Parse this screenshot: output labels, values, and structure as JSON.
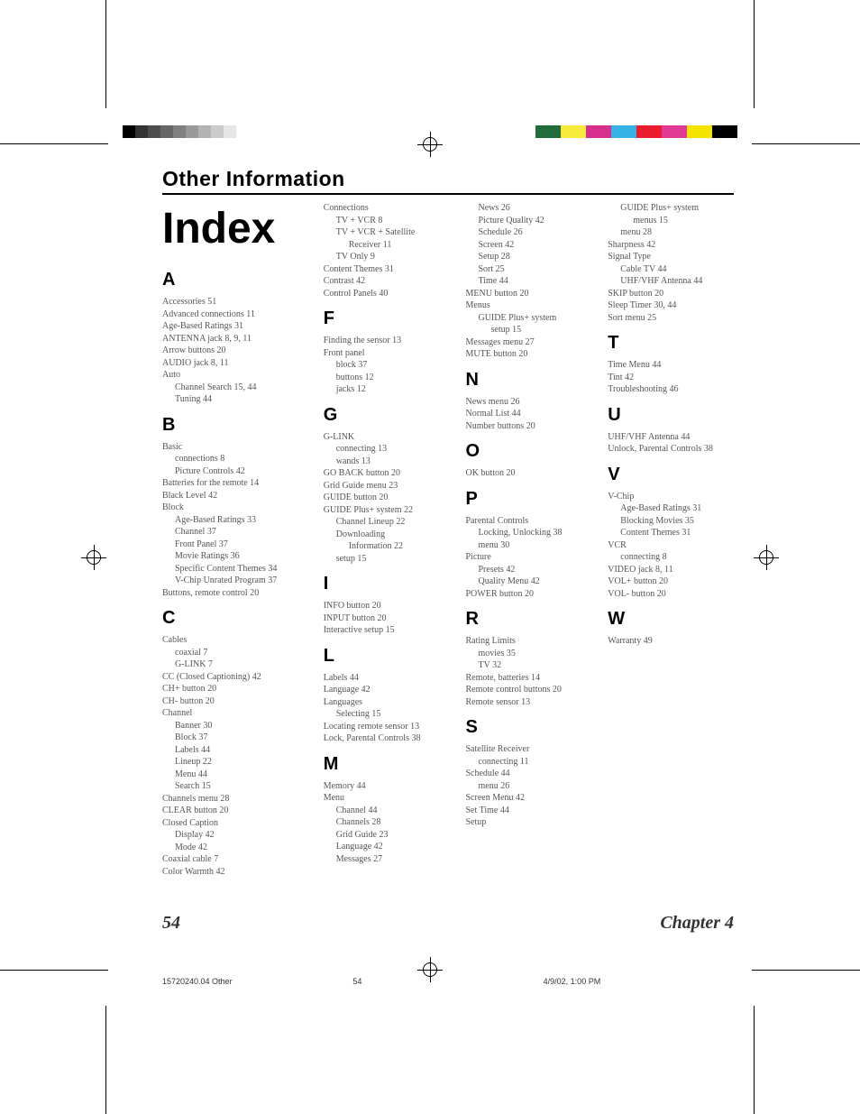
{
  "colorbar_left_grays": [
    "#000000",
    "#333333",
    "#4d4d4d",
    "#666666",
    "#808080",
    "#999999",
    "#b3b3b3",
    "#cccccc",
    "#e6e6e6",
    "#ffffff"
  ],
  "colorbar_right": [
    "#216c3a",
    "#f7ea3a",
    "#d72f8e",
    "#38b3e6",
    "#ea1c2d",
    "#e03a95",
    "#f4e400",
    "#000000"
  ],
  "section_title": "Other Information",
  "index_title": "Index",
  "footer": {
    "page": "54",
    "chapter": "Chapter 4"
  },
  "slug": {
    "file": "15720240.04 Other",
    "pagenum": "54",
    "datetime": "4/9/02, 1:00 PM"
  },
  "letters": {
    "A": [
      {
        "t": "Accessories   51"
      },
      {
        "t": "Advanced connections   11"
      },
      {
        "t": "Age-Based Ratings   31"
      },
      {
        "t": "ANTENNA jack   8,  9,  11"
      },
      {
        "t": "Arrow buttons   20"
      },
      {
        "t": "AUDIO jack   8,  11"
      },
      {
        "t": "Auto"
      },
      {
        "t": "Channel Search   15,  44",
        "c": "sub"
      },
      {
        "t": "Tuning   44",
        "c": "sub"
      }
    ],
    "B": [
      {
        "t": "Basic"
      },
      {
        "t": "connections   8",
        "c": "sub"
      },
      {
        "t": "Picture Controls   42",
        "c": "sub"
      },
      {
        "t": "Batteries for the remote   14"
      },
      {
        "t": "Black Level   42"
      },
      {
        "t": "Block"
      },
      {
        "t": "Age-Based Ratings   33",
        "c": "sub"
      },
      {
        "t": "Channel   37",
        "c": "sub"
      },
      {
        "t": "Front Panel   37",
        "c": "sub"
      },
      {
        "t": "Movie Ratings   36",
        "c": "sub"
      },
      {
        "t": "Specific Content Themes   34",
        "c": "sub"
      },
      {
        "t": "V-Chip Unrated Program   37",
        "c": "sub"
      },
      {
        "t": "Buttons, remote control   20"
      }
    ],
    "C": [
      {
        "t": "Cables"
      },
      {
        "t": "coaxial   7",
        "c": "sub"
      },
      {
        "t": "G-LINK   7",
        "c": "sub"
      },
      {
        "t": "CC (Closed Captioning)   42"
      },
      {
        "t": "CH+ button   20"
      },
      {
        "t": "CH- button   20"
      },
      {
        "t": "Channel"
      },
      {
        "t": "Banner   30",
        "c": "sub"
      },
      {
        "t": "Block   37",
        "c": "sub"
      },
      {
        "t": "Labels   44",
        "c": "sub"
      },
      {
        "t": "Lineup   22",
        "c": "sub"
      },
      {
        "t": "Menu   44",
        "c": "sub"
      },
      {
        "t": "Search   15",
        "c": "sub"
      },
      {
        "t": "Channels menu   28"
      },
      {
        "t": "CLEAR button   20"
      },
      {
        "t": "Closed Caption"
      },
      {
        "t": "Display   42",
        "c": "sub"
      },
      {
        "t": "Mode   42",
        "c": "sub"
      },
      {
        "t": "Coaxial cable   7"
      },
      {
        "t": "Color Warmth   42"
      }
    ],
    "Cx": [
      {
        "t": "Connections"
      },
      {
        "t": "TV + VCR   8",
        "c": "sub"
      },
      {
        "t": "TV + VCR + Satellite",
        "c": "sub"
      },
      {
        "t": "Receiver   11",
        "c": "sub2"
      },
      {
        "t": "TV Only   9",
        "c": "sub"
      },
      {
        "t": "Content Themes   31"
      },
      {
        "t": "Contrast   42"
      },
      {
        "t": "Control Panels   40"
      }
    ],
    "F": [
      {
        "t": "Finding the sensor   13"
      },
      {
        "t": "Front panel"
      },
      {
        "t": "block   37",
        "c": "sub"
      },
      {
        "t": "buttons   12",
        "c": "sub"
      },
      {
        "t": "jacks   12",
        "c": "sub"
      }
    ],
    "G": [
      {
        "t": "G-LINK"
      },
      {
        "t": "connecting   13",
        "c": "sub"
      },
      {
        "t": "wands   13",
        "c": "sub"
      },
      {
        "t": "GO BACK button   20"
      },
      {
        "t": "Grid Guide menu   23"
      },
      {
        "t": "GUIDE button   20"
      },
      {
        "t": "GUIDE Plus+ system   22"
      },
      {
        "t": "Channel Lineup   22",
        "c": "sub"
      },
      {
        "t": "Downloading",
        "c": "sub"
      },
      {
        "t": "Information   22",
        "c": "sub2"
      },
      {
        "t": "setup   15",
        "c": "sub"
      }
    ],
    "I": [
      {
        "t": "INFO button   20"
      },
      {
        "t": "INPUT button   20"
      },
      {
        "t": "Interactive setup   15"
      }
    ],
    "L": [
      {
        "t": "Labels   44"
      },
      {
        "t": "Language   42"
      },
      {
        "t": "Languages"
      },
      {
        "t": "Selecting   15",
        "c": "sub"
      },
      {
        "t": "Locating remote sensor   13"
      },
      {
        "t": "Lock, Parental Controls   38"
      }
    ],
    "M": [
      {
        "t": "Memory   44"
      },
      {
        "t": "Menu"
      },
      {
        "t": "Channel   44",
        "c": "sub"
      },
      {
        "t": "Channels   28",
        "c": "sub"
      },
      {
        "t": "Grid Guide   23",
        "c": "sub"
      },
      {
        "t": "Language   42",
        "c": "sub"
      },
      {
        "t": "Messages   27",
        "c": "sub"
      }
    ],
    "Mx": [
      {
        "t": "News   26",
        "c": "sub"
      },
      {
        "t": "Picture Quality   42",
        "c": "sub"
      },
      {
        "t": "Schedule   26",
        "c": "sub"
      },
      {
        "t": "Screen   42",
        "c": "sub"
      },
      {
        "t": "Setup   28",
        "c": "sub"
      },
      {
        "t": "Sort   25",
        "c": "sub"
      },
      {
        "t": "Time   44",
        "c": "sub"
      },
      {
        "t": "MENU button   20"
      },
      {
        "t": "Menus"
      },
      {
        "t": "GUIDE Plus+ system",
        "c": "sub"
      },
      {
        "t": "setup   15",
        "c": "sub2"
      },
      {
        "t": "Messages menu   27"
      },
      {
        "t": "MUTE button   20"
      }
    ],
    "N": [
      {
        "t": "News menu   26"
      },
      {
        "t": "Normal List   44"
      },
      {
        "t": "Number buttons   20"
      }
    ],
    "O": [
      {
        "t": "OK button   20"
      }
    ],
    "P": [
      {
        "t": "Parental Controls"
      },
      {
        "t": "Locking, Unlocking   38",
        "c": "sub"
      },
      {
        "t": "menu   30",
        "c": "sub"
      },
      {
        "t": "Picture"
      },
      {
        "t": "Presets   42",
        "c": "sub"
      },
      {
        "t": "Quality Menu   42",
        "c": "sub"
      },
      {
        "t": "POWER button   20"
      }
    ],
    "R": [
      {
        "t": "Rating Limits"
      },
      {
        "t": "movies   35",
        "c": "sub"
      },
      {
        "t": "TV   32",
        "c": "sub"
      },
      {
        "t": "Remote, batteries   14"
      },
      {
        "t": "Remote control buttons   20"
      },
      {
        "t": "Remote sensor   13"
      }
    ],
    "S": [
      {
        "t": "Satellite Receiver"
      },
      {
        "t": "connecting   11",
        "c": "sub"
      },
      {
        "t": "Schedule   44"
      },
      {
        "t": "menu   26",
        "c": "sub"
      },
      {
        "t": "Screen Menu   42"
      },
      {
        "t": "Set Time   44"
      },
      {
        "t": "Setup"
      }
    ],
    "Sx": [
      {
        "t": "GUIDE Plus+ system",
        "c": "sub"
      },
      {
        "t": "menus   15",
        "c": "sub2"
      },
      {
        "t": "menu   28",
        "c": "sub"
      },
      {
        "t": "Sharpness   42"
      },
      {
        "t": "Signal Type"
      },
      {
        "t": "Cable TV   44",
        "c": "sub"
      },
      {
        "t": "UHF/VHF Antenna   44",
        "c": "sub"
      },
      {
        "t": "SKIP button   20"
      },
      {
        "t": "Sleep Timer   30,  44"
      },
      {
        "t": "Sort menu   25"
      }
    ],
    "T": [
      {
        "t": "Time Menu   44"
      },
      {
        "t": "Tint   42"
      },
      {
        "t": "Troubleshooting   46"
      }
    ],
    "U": [
      {
        "t": "UHF/VHF Antenna   44"
      },
      {
        "t": "Unlock, Parental Controls   38"
      }
    ],
    "V": [
      {
        "t": "V-Chip"
      },
      {
        "t": "Age-Based Ratings   31",
        "c": "sub"
      },
      {
        "t": "Blocking Movies   35",
        "c": "sub"
      },
      {
        "t": "Content Themes   31",
        "c": "sub"
      },
      {
        "t": "VCR"
      },
      {
        "t": "connecting   8",
        "c": "sub"
      },
      {
        "t": "VIDEO jack   8,  11"
      },
      {
        "t": "VOL+ button   20"
      },
      {
        "t": "VOL- button   20"
      }
    ],
    "W": [
      {
        "t": "Warranty   49"
      }
    ]
  }
}
